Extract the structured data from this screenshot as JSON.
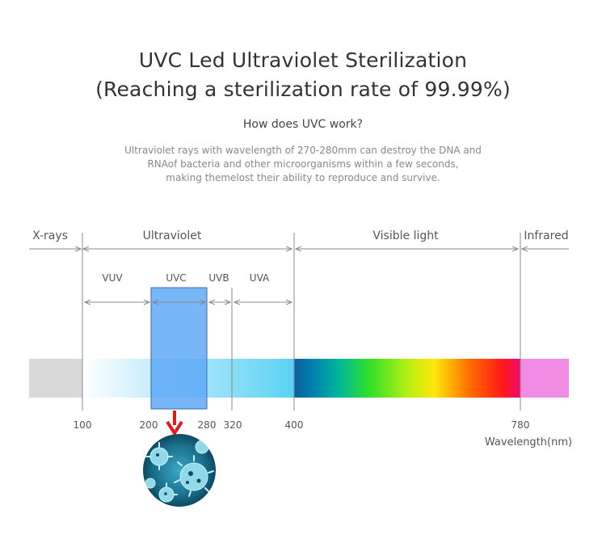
{
  "title_line1": "UVC Led Ultraviolet Sterilization",
  "title_line2": "(Reaching a sterilization rate of 99.99%)",
  "subtitle": "How does UVC work?",
  "description": [
    "Ultraviolet rays with wavelength of 270-280mm can destroy the DNA and",
    "RNAof bacteria and other microorganisms within a few seconds,",
    "making themelost their ability to reproduce and survive."
  ],
  "regions": {
    "xrays": "X-rays",
    "ultraviolet": "Ultraviolet",
    "visible": "Visible light",
    "infrared": "Infrared"
  },
  "bands": {
    "vuv": "VUV",
    "uvc": "UVC",
    "uvb": "UVB",
    "uva": "UVA"
  },
  "ticks": [
    "100",
    "200",
    "280",
    "320",
    "400",
    "780"
  ],
  "axis_label": "Wavelength(nm)",
  "icons": [
    "arrow-down-icon",
    "virus-icon"
  ],
  "colors": {
    "uvc_highlight": "#5aa6f5",
    "arrow": "#e21b1b",
    "xray_band": "#d9d9d9",
    "infrared_band": "#f08ce4"
  }
}
